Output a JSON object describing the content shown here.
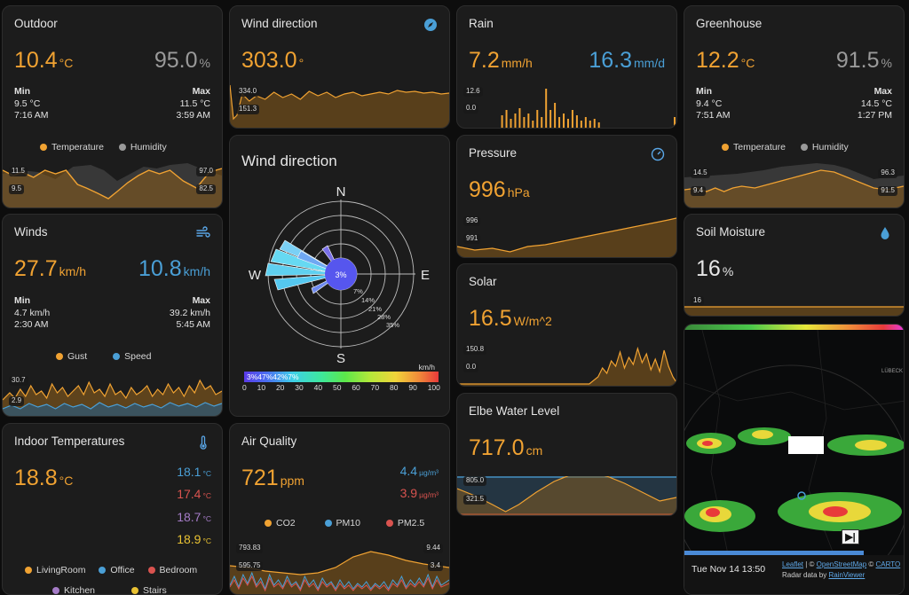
{
  "outdoor": {
    "title": "Outdoor",
    "temp": "10.4",
    "temp_unit": "°C",
    "hum": "95.0",
    "hum_unit": "%",
    "min_label": "Min",
    "min_value": "9.5 °C",
    "min_time": "7:16 AM",
    "max_label": "Max",
    "max_value": "11.5 °C",
    "max_time": "3:59 AM",
    "legend": [
      "Temperature",
      "Humidity"
    ],
    "ticks": [
      "11.5",
      "9.5",
      "97.0",
      "82.5"
    ]
  },
  "wind_dir_card": {
    "title": "Wind direction",
    "icon": "compass-icon",
    "value": "303.0",
    "unit": "°",
    "ticks": [
      "334.0",
      "151.3"
    ]
  },
  "rain": {
    "title": "Rain",
    "rate": "7.2",
    "rate_unit": "mm/h",
    "day": "16.3",
    "day_unit": "mm/d",
    "ticks": [
      "12.6",
      "0.0"
    ]
  },
  "greenhouse": {
    "title": "Greenhouse",
    "temp": "12.2",
    "temp_unit": "°C",
    "hum": "91.5",
    "hum_unit": "%",
    "min_label": "Min",
    "min_value": "9.4 °C",
    "min_time": "7:51 AM",
    "max_label": "Max",
    "max_value": "14.5 °C",
    "max_time": "1:27 PM",
    "legend": [
      "Temperature",
      "Humidity"
    ],
    "ticks": [
      "14.5",
      "9.4",
      "96.3",
      "91.5"
    ]
  },
  "winds": {
    "title": "Winds",
    "icon": "wind-icon",
    "gust": "27.7",
    "gust_unit": "km/h",
    "speed": "10.8",
    "speed_unit": "km/h",
    "min_label": "Min",
    "min_value": "4.7 km/h",
    "min_time": "2:30 AM",
    "max_label": "Max",
    "max_value": "39.2 km/h",
    "max_time": "5:45 AM",
    "legend": [
      "Gust",
      "Speed"
    ],
    "ticks": [
      "30.7",
      "2.9"
    ]
  },
  "windrose": {
    "title": "Wind direction",
    "compass": [
      "N",
      "E",
      "S",
      "W"
    ],
    "center": "3%",
    "rings": [
      "7%",
      "14%",
      "21%",
      "28%",
      "35%"
    ],
    "scale_unit": "km/h",
    "scale_ticks": [
      "0",
      "10",
      "20",
      "30",
      "40",
      "50",
      "60",
      "70",
      "80",
      "90",
      "100"
    ],
    "scale_pct": "3%47%42%7%"
  },
  "pressure": {
    "title": "Pressure",
    "icon": "gauge-icon",
    "value": "996",
    "unit": "hPa",
    "ticks": [
      "996",
      "991"
    ]
  },
  "soil": {
    "title": "Soil Moisture",
    "icon": "water-drop-icon",
    "value": "16",
    "unit": "%",
    "ticks": [
      "16"
    ]
  },
  "solar": {
    "title": "Solar",
    "value": "16.5",
    "unit": "W/m^2",
    "ticks": [
      "150.8",
      "0.0"
    ]
  },
  "elbe": {
    "title": "Elbe Water Level",
    "value": "717.0",
    "unit": "cm",
    "ticks": [
      "805.0",
      "321.5"
    ]
  },
  "indoor": {
    "title": "Indoor Temperatures",
    "icon": "thermometer-icon",
    "main": "18.8",
    "main_unit": "°C",
    "rows": [
      "18.1",
      "17.4",
      "18.7",
      "18.9"
    ],
    "row_unit": "°C",
    "legend": [
      "LivingRoom",
      "Office",
      "Bedroom",
      "Kitchen",
      "Stairs"
    ]
  },
  "air": {
    "title": "Air Quality",
    "co2": "721",
    "co2_unit": "ppm",
    "pm10": "4.4",
    "pm25": "3.9",
    "pm_unit": "µg/m³",
    "legend": [
      "CO2",
      "PM10",
      "PM2.5"
    ],
    "ticks": [
      "793.83",
      "595.75",
      "9.44",
      "3.4"
    ]
  },
  "radar": {
    "time": "Tue Nov 14 13:50",
    "attr_leaflet": "Leaflet",
    "attr_sep": " | © ",
    "attr_osm": "OpenStreetMap",
    "attr_carto": "CARTO",
    "attr_radar_prefix": "Radar data by ",
    "attr_radar": "RainViewer",
    "city_label": "LÜBECK"
  },
  "colors": {
    "background": "#0d0d0d",
    "card": "#1c1c1c",
    "orange": "#f0a232",
    "blue": "#4a9fd6",
    "grey": "#9a9a9a",
    "red": "#d9534f"
  }
}
